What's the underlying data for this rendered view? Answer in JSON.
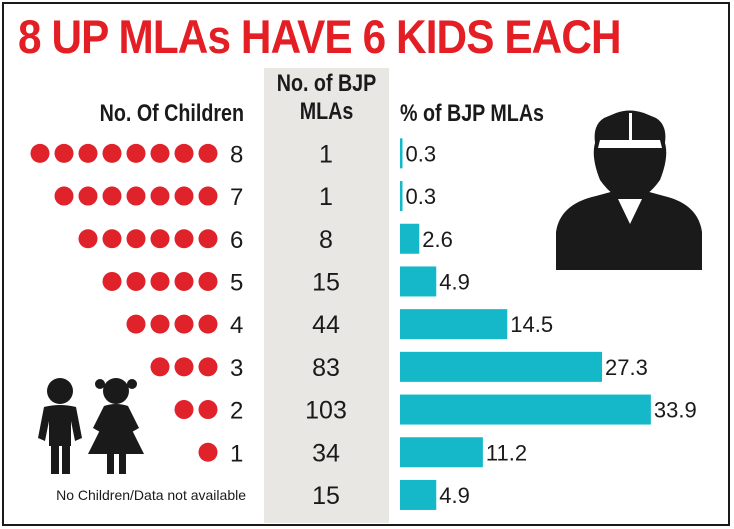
{
  "colors": {
    "title": "#e31e24",
    "dot": "#e0222b",
    "bar": "#14b8c9",
    "band": "#e8e7e3",
    "text": "#1a1a1a",
    "silhouette": "#1a1a1a"
  },
  "icons": [
    "man-silhouette-icon",
    "children-silhouette-icon"
  ],
  "header": {
    "title": "8 UP MLAs HAVE 6 KIDS EACH",
    "col_children": "No. Of Children",
    "col_mlas_line1": "No. of BJP",
    "col_mlas_line2": "MLAs",
    "col_pct": "% of BJP MLAs"
  },
  "chart_data": {
    "type": "bar",
    "orientation": "horizontal",
    "title": "8 UP MLAs HAVE 6 KIDS EACH",
    "category_axis_label": "No. Of Children",
    "categories": [
      "8",
      "7",
      "6",
      "5",
      "4",
      "3",
      "2",
      "1",
      "No Children/Data not available"
    ],
    "series": [
      {
        "name": "No. of BJP MLAs",
        "values": [
          1,
          1,
          8,
          15,
          44,
          83,
          103,
          34,
          15
        ]
      },
      {
        "name": "% of BJP MLAs",
        "values": [
          0.3,
          0.3,
          2.6,
          4.9,
          14.5,
          27.3,
          33.9,
          11.2,
          4.9
        ]
      }
    ],
    "value_labels": {
      "mlas": [
        "1",
        "1",
        "8",
        "15",
        "44",
        "83",
        "103",
        "34",
        "15"
      ],
      "pct": [
        "0.3",
        "0.3",
        "2.6",
        "4.9",
        "14.5",
        "27.3",
        "33.9",
        "11.2",
        "4.9"
      ]
    },
    "dots_per_row": [
      8,
      7,
      6,
      5,
      4,
      3,
      2,
      1,
      0
    ],
    "grid": false,
    "legend": "none"
  }
}
